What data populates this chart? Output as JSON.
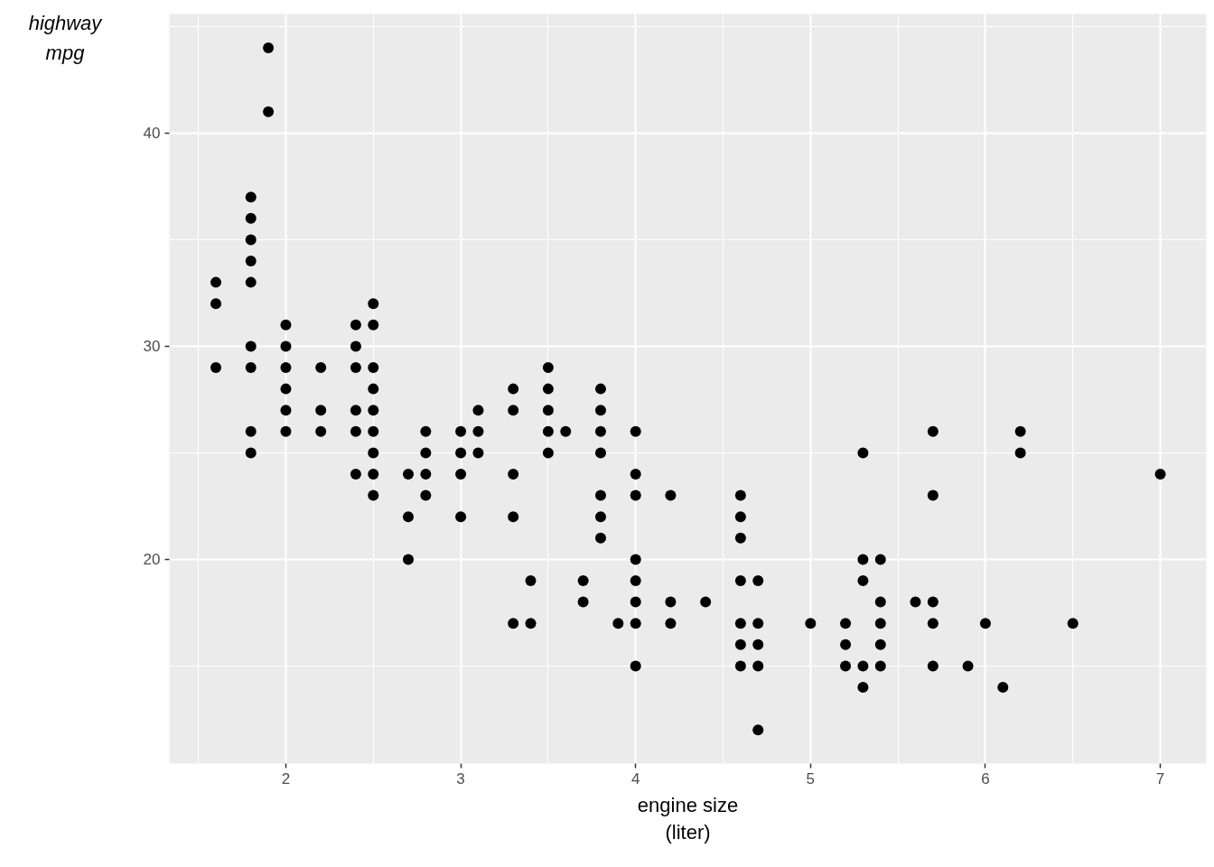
{
  "chart_data": {
    "type": "scatter",
    "xlabel": "engine size\n(liter)",
    "ylabel": "highway\nmpg",
    "x": [
      1.6,
      1.6,
      1.6,
      1.8,
      1.8,
      1.8,
      1.8,
      1.8,
      1.8,
      1.8,
      1.8,
      1.8,
      1.9,
      1.9,
      2.0,
      2.0,
      2.0,
      2.0,
      2.0,
      2.0,
      2.2,
      2.2,
      2.2,
      2.4,
      2.4,
      2.4,
      2.4,
      2.4,
      2.4,
      2.5,
      2.5,
      2.5,
      2.5,
      2.5,
      2.5,
      2.5,
      2.5,
      2.5,
      2.7,
      2.7,
      2.7,
      2.8,
      2.8,
      2.8,
      2.8,
      3.0,
      3.0,
      3.0,
      3.0,
      3.1,
      3.1,
      3.1,
      3.3,
      3.3,
      3.3,
      3.3,
      3.3,
      3.4,
      3.4,
      3.5,
      3.5,
      3.5,
      3.5,
      3.5,
      3.6,
      3.7,
      3.7,
      3.8,
      3.8,
      3.8,
      3.8,
      3.8,
      3.8,
      3.8,
      3.9,
      4.0,
      4.0,
      4.0,
      4.0,
      4.0,
      4.0,
      4.0,
      4.0,
      4.2,
      4.2,
      4.2,
      4.4,
      4.6,
      4.6,
      4.6,
      4.6,
      4.6,
      4.6,
      4.6,
      4.7,
      4.7,
      4.7,
      4.7,
      4.7,
      5.0,
      5.2,
      5.2,
      5.2,
      5.3,
      5.3,
      5.3,
      5.3,
      5.3,
      5.4,
      5.4,
      5.4,
      5.4,
      5.4,
      5.6,
      5.7,
      5.7,
      5.7,
      5.7,
      5.7,
      5.9,
      6.0,
      6.1,
      6.2,
      6.2,
      6.5,
      7.0
    ],
    "values": [
      33,
      32,
      29,
      37,
      36,
      35,
      34,
      33,
      30,
      29,
      26,
      25,
      44,
      41,
      31,
      30,
      29,
      28,
      27,
      26,
      29,
      27,
      26,
      31,
      30,
      29,
      27,
      26,
      24,
      32,
      31,
      29,
      28,
      27,
      26,
      25,
      24,
      23,
      24,
      22,
      20,
      26,
      25,
      24,
      23,
      26,
      25,
      24,
      22,
      27,
      26,
      25,
      28,
      27,
      24,
      22,
      17,
      19,
      17,
      29,
      28,
      27,
      26,
      25,
      26,
      19,
      18,
      28,
      27,
      26,
      25,
      23,
      22,
      21,
      17,
      26,
      24,
      23,
      20,
      19,
      18,
      17,
      15,
      23,
      18,
      17,
      18,
      23,
      22,
      21,
      19,
      17,
      16,
      15,
      19,
      17,
      16,
      15,
      12,
      17,
      17,
      16,
      15,
      25,
      20,
      19,
      15,
      14,
      20,
      18,
      17,
      16,
      15,
      18,
      26,
      23,
      18,
      17,
      15,
      15,
      17,
      14,
      26,
      25,
      17,
      24
    ],
    "color": "#000000",
    "marker": "circle",
    "xlim": [
      1.334,
      7.263
    ],
    "ylim": [
      10.42,
      45.59
    ],
    "xticks": [
      {
        "value": 1.5,
        "label": null
      },
      2,
      {
        "value": 2.5,
        "label": null
      },
      3,
      {
        "value": 3.5,
        "label": null
      },
      4,
      {
        "value": 4.5,
        "label": null
      },
      5,
      {
        "value": 5.5,
        "label": null
      },
      6,
      {
        "value": 6.5,
        "label": null
      },
      7
    ],
    "yticks": [
      {
        "value": 15,
        "label": null
      },
      20,
      {
        "value": 25,
        "label": null
      },
      30,
      {
        "value": 35,
        "label": null
      },
      40,
      {
        "value": 45,
        "label": null
      }
    ],
    "grid": true
  }
}
